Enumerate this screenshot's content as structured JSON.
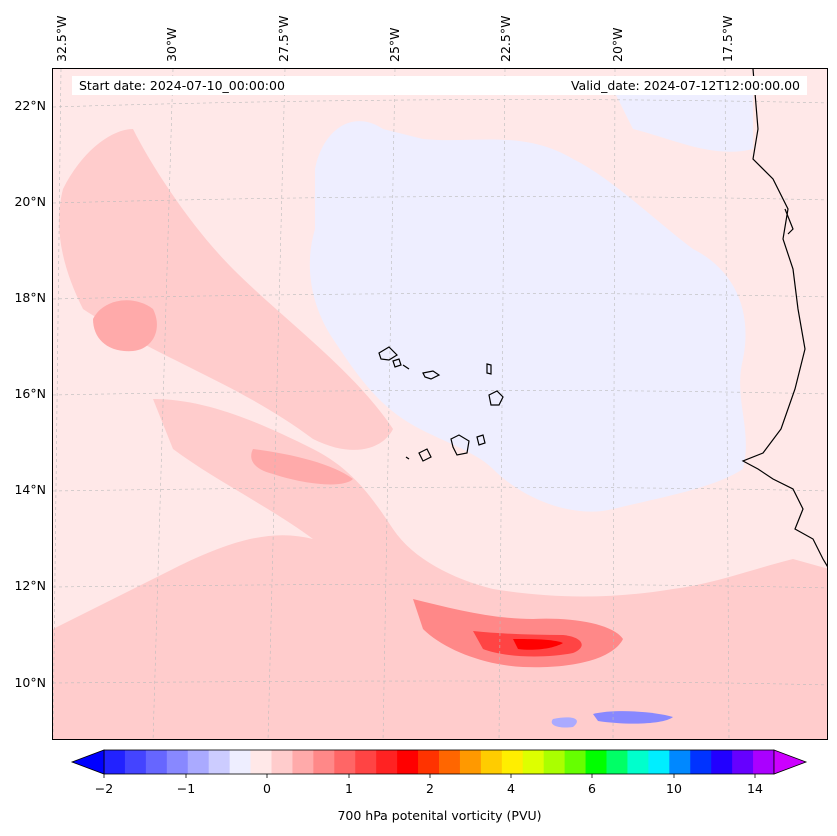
{
  "header": {
    "start_date": "Start date: 2024-07-10_00:00:00",
    "valid_date": "Valid_date: 2024-07-12T12:00:00.00"
  },
  "axes": {
    "lat_ticks": [
      "22°N",
      "20°N",
      "18°N",
      "16°N",
      "14°N",
      "12°N",
      "10°N"
    ],
    "lon_ticks": [
      "32.5°W",
      "30°W",
      "27.5°W",
      "25°W",
      "22.5°W",
      "20°W",
      "17.5°W"
    ],
    "grid": true
  },
  "colorbar": {
    "label": "700 hPa potenital vorticity (PVU)",
    "ticks": [
      "−2",
      "−1",
      "0",
      "1",
      "2",
      "4",
      "6",
      "10",
      "14"
    ],
    "colors": [
      "#0000ff",
      "#2222ff",
      "#4444ff",
      "#6666ff",
      "#8888ff",
      "#aaaaff",
      "#ccccff",
      "#eeeeff",
      "#ffe8e8",
      "#ffcccc",
      "#ffaaaa",
      "#ff8888",
      "#ff6666",
      "#ff4444",
      "#ff2222",
      "#ff0000",
      "#ff3300",
      "#ff6600",
      "#ff9900",
      "#ffcc00",
      "#ffee00",
      "#ddff00",
      "#aaff00",
      "#66ff00",
      "#00ff00",
      "#00ff66",
      "#00ffcc",
      "#00eeff",
      "#0088ff",
      "#0033ff",
      "#2200ff",
      "#6600ff",
      "#aa00ff",
      "#cc00ff"
    ]
  },
  "map": {
    "background_color": "#ffe8e8",
    "coastline_color": "#000000",
    "islands": [
      "cabo-verde"
    ]
  }
}
